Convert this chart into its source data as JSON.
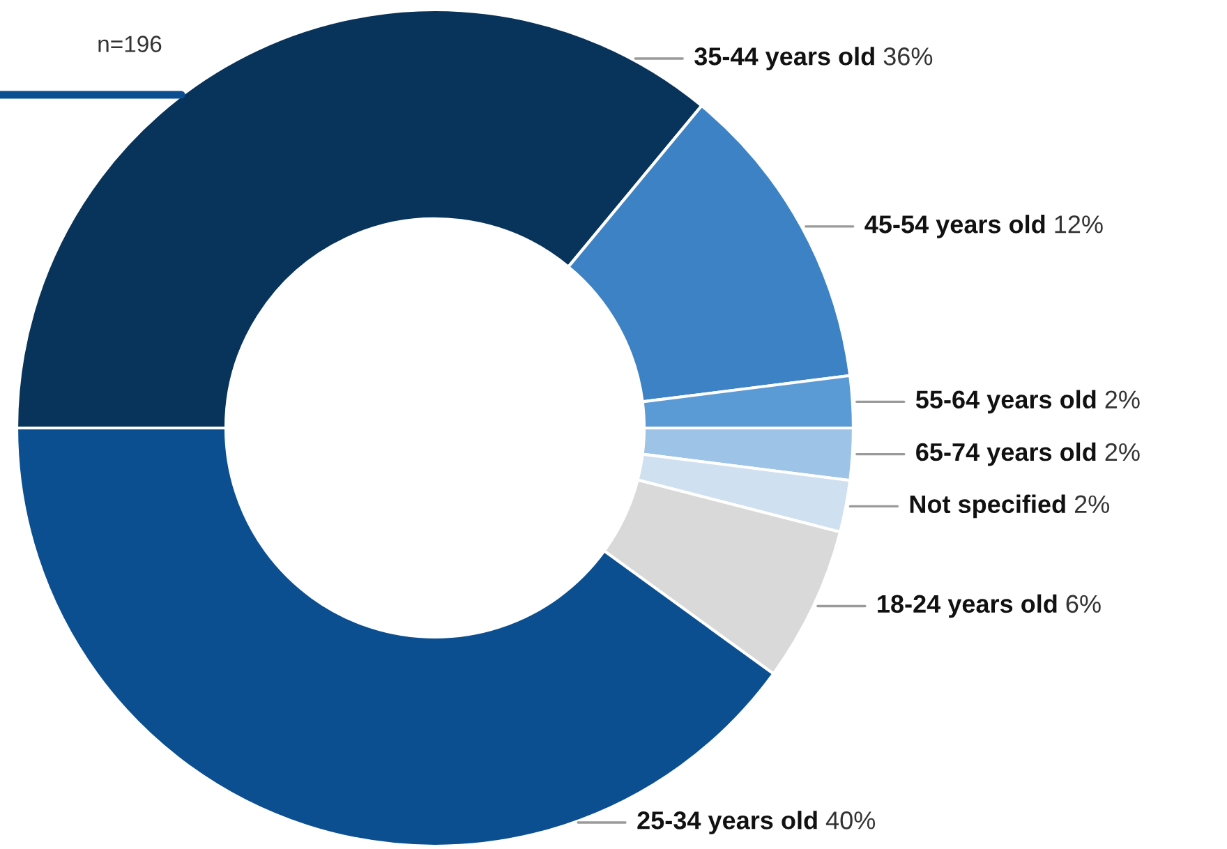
{
  "chart_data": {
    "type": "donut",
    "categories": [
      "35-44 years old",
      "45-54 years old",
      "55-64 years old",
      "65-74 years old",
      "Not specified",
      "18-24 years old",
      "25-34 years old"
    ],
    "values": [
      36,
      12,
      2,
      2,
      2,
      6,
      40
    ],
    "value_labels": [
      "36%",
      "12%",
      "2%",
      "2%",
      "2%",
      "6%",
      "40%"
    ],
    "colors": [
      "#08335a",
      "#3d82c4",
      "#5b9bd5",
      "#9dc3e6",
      "#cfe0f0",
      "#d9d9d9",
      "#0b4f91"
    ],
    "annotations": [
      "n=196"
    ],
    "legend": false
  }
}
